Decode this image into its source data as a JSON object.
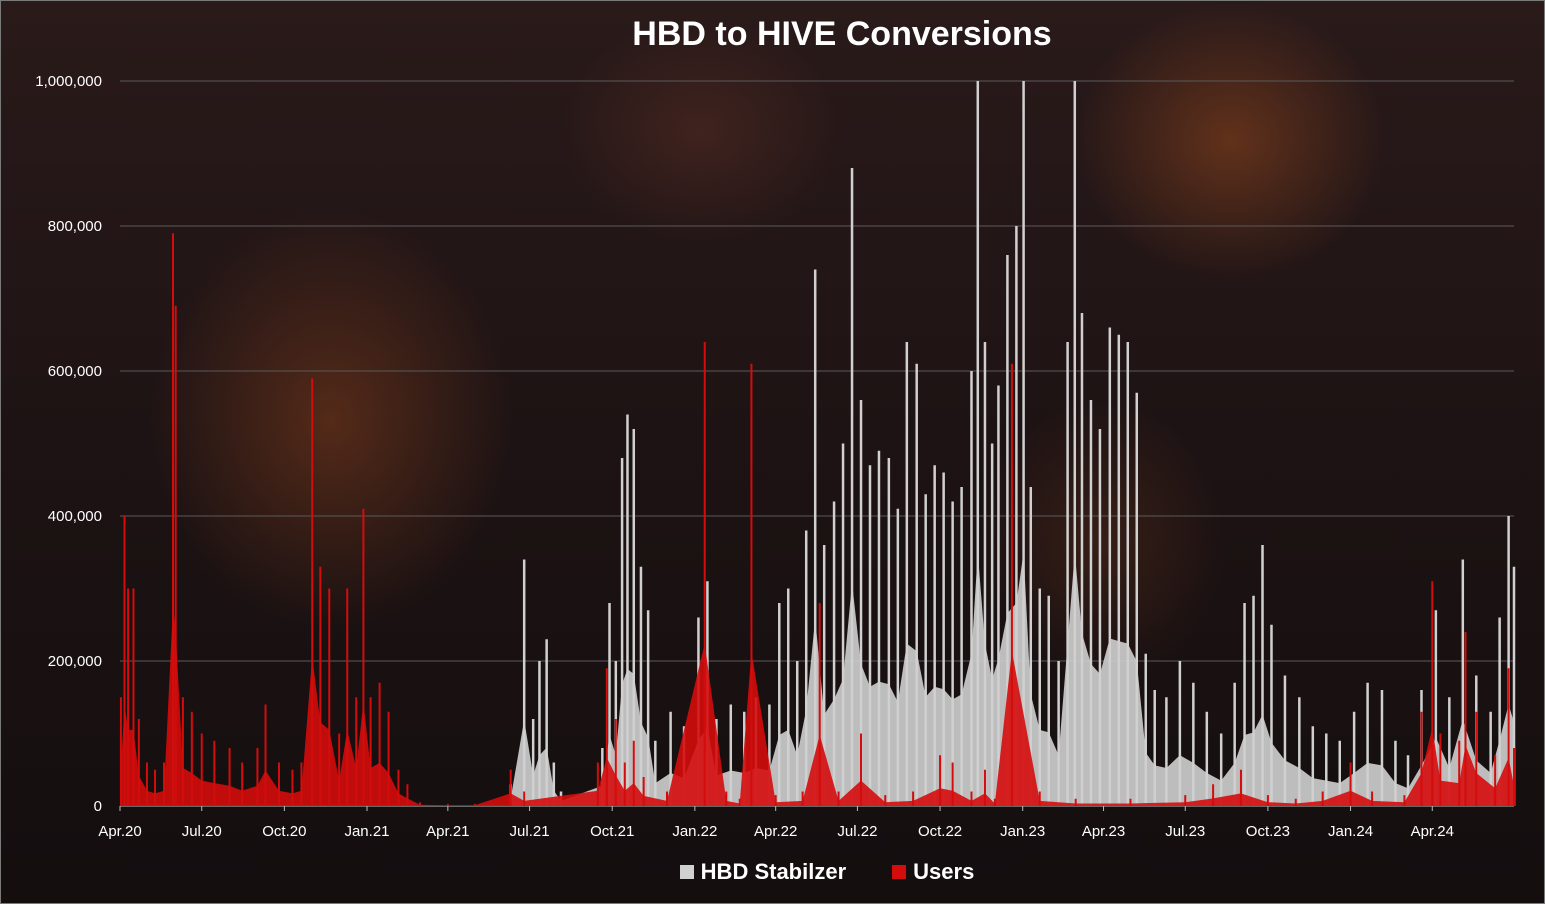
{
  "chart_data": {
    "type": "bar",
    "title": "HBD to HIVE Conversions",
    "xlabel": "",
    "ylabel": "",
    "ylim": [
      0,
      1000000
    ],
    "y_ticks": [
      "0",
      "200,000",
      "400,000",
      "600,000",
      "800,000",
      "1,000,000"
    ],
    "y_tick_values": [
      0,
      200000,
      400000,
      600000,
      800000,
      1000000
    ],
    "x_ticks": [
      "Apr.20",
      "Jul.20",
      "Oct.20",
      "Jan.21",
      "Apr.21",
      "Jul.21",
      "Oct.21",
      "Jan.22",
      "Apr.22",
      "Jul.22",
      "Oct.22",
      "Jan.23",
      "Apr.23",
      "Jul.23",
      "Oct.23",
      "Jan.24",
      "Apr.24"
    ],
    "x_unit": "month",
    "x_start": "2020-04",
    "x_end": "2024-07",
    "grid": true,
    "legend_position": "bottom",
    "series": [
      {
        "name": "HBD Stabilzer",
        "color": "#d0d0d0",
        "stacked": false,
        "points": [
          [
            "2021-06-10",
            30000
          ],
          [
            "2021-06-25",
            340000
          ],
          [
            "2021-07-05",
            120000
          ],
          [
            "2021-07-12",
            200000
          ],
          [
            "2021-07-20",
            230000
          ],
          [
            "2021-07-28",
            60000
          ],
          [
            "2021-08-05",
            20000
          ],
          [
            "2021-09-20",
            80000
          ],
          [
            "2021-09-28",
            280000
          ],
          [
            "2021-10-05",
            200000
          ],
          [
            "2021-10-12",
            480000
          ],
          [
            "2021-10-18",
            540000
          ],
          [
            "2021-10-25",
            520000
          ],
          [
            "2021-11-02",
            330000
          ],
          [
            "2021-11-10",
            270000
          ],
          [
            "2021-11-18",
            90000
          ],
          [
            "2021-12-05",
            130000
          ],
          [
            "2021-12-20",
            110000
          ],
          [
            "2022-01-05",
            260000
          ],
          [
            "2022-01-15",
            310000
          ],
          [
            "2022-01-25",
            120000
          ],
          [
            "2022-02-10",
            140000
          ],
          [
            "2022-02-25",
            130000
          ],
          [
            "2022-03-10",
            150000
          ],
          [
            "2022-03-25",
            140000
          ],
          [
            "2022-04-05",
            280000
          ],
          [
            "2022-04-15",
            300000
          ],
          [
            "2022-04-25",
            200000
          ],
          [
            "2022-05-05",
            380000
          ],
          [
            "2022-05-15",
            740000
          ],
          [
            "2022-05-25",
            360000
          ],
          [
            "2022-06-05",
            420000
          ],
          [
            "2022-06-15",
            500000
          ],
          [
            "2022-06-25",
            880000
          ],
          [
            "2022-07-05",
            560000
          ],
          [
            "2022-07-15",
            470000
          ],
          [
            "2022-07-25",
            490000
          ],
          [
            "2022-08-05",
            480000
          ],
          [
            "2022-08-15",
            410000
          ],
          [
            "2022-08-25",
            640000
          ],
          [
            "2022-09-05",
            610000
          ],
          [
            "2022-09-15",
            430000
          ],
          [
            "2022-09-25",
            470000
          ],
          [
            "2022-10-05",
            460000
          ],
          [
            "2022-10-15",
            420000
          ],
          [
            "2022-10-25",
            440000
          ],
          [
            "2022-11-05",
            600000
          ],
          [
            "2022-11-12",
            1000000
          ],
          [
            "2022-11-20",
            640000
          ],
          [
            "2022-11-28",
            500000
          ],
          [
            "2022-12-05",
            580000
          ],
          [
            "2022-12-15",
            760000
          ],
          [
            "2022-12-25",
            800000
          ],
          [
            "2023-01-02",
            1000000
          ],
          [
            "2023-01-10",
            440000
          ],
          [
            "2023-01-20",
            300000
          ],
          [
            "2023-01-30",
            290000
          ],
          [
            "2023-02-10",
            200000
          ],
          [
            "2023-02-20",
            640000
          ],
          [
            "2023-02-28",
            1000000
          ],
          [
            "2023-03-08",
            680000
          ],
          [
            "2023-03-18",
            560000
          ],
          [
            "2023-03-28",
            520000
          ],
          [
            "2023-04-08",
            660000
          ],
          [
            "2023-04-18",
            650000
          ],
          [
            "2023-04-28",
            640000
          ],
          [
            "2023-05-08",
            570000
          ],
          [
            "2023-05-18",
            210000
          ],
          [
            "2023-05-28",
            160000
          ],
          [
            "2023-06-10",
            150000
          ],
          [
            "2023-06-25",
            200000
          ],
          [
            "2023-07-10",
            170000
          ],
          [
            "2023-07-25",
            130000
          ],
          [
            "2023-08-10",
            100000
          ],
          [
            "2023-08-25",
            170000
          ],
          [
            "2023-09-05",
            280000
          ],
          [
            "2023-09-15",
            290000
          ],
          [
            "2023-09-25",
            360000
          ],
          [
            "2023-10-05",
            250000
          ],
          [
            "2023-10-20",
            180000
          ],
          [
            "2023-11-05",
            150000
          ],
          [
            "2023-11-20",
            110000
          ],
          [
            "2023-12-05",
            100000
          ],
          [
            "2023-12-20",
            90000
          ],
          [
            "2024-01-05",
            130000
          ],
          [
            "2024-01-20",
            170000
          ],
          [
            "2024-02-05",
            160000
          ],
          [
            "2024-02-20",
            90000
          ],
          [
            "2024-03-05",
            70000
          ],
          [
            "2024-03-20",
            160000
          ],
          [
            "2024-04-05",
            270000
          ],
          [
            "2024-04-20",
            150000
          ],
          [
            "2024-05-05",
            340000
          ],
          [
            "2024-05-20",
            180000
          ],
          [
            "2024-06-05",
            130000
          ],
          [
            "2024-06-15",
            260000
          ],
          [
            "2024-06-25",
            400000
          ],
          [
            "2024-07-01",
            330000
          ]
        ]
      },
      {
        "name": "Users",
        "color": "#d40c0c",
        "stacked": false,
        "points": [
          [
            "2020-04-02",
            150000
          ],
          [
            "2020-04-06",
            400000
          ],
          [
            "2020-04-10",
            300000
          ],
          [
            "2020-04-16",
            300000
          ],
          [
            "2020-04-22",
            120000
          ],
          [
            "2020-05-01",
            60000
          ],
          [
            "2020-05-10",
            50000
          ],
          [
            "2020-05-20",
            60000
          ],
          [
            "2020-05-30",
            790000
          ],
          [
            "2020-06-02",
            690000
          ],
          [
            "2020-06-10",
            150000
          ],
          [
            "2020-06-20",
            130000
          ],
          [
            "2020-07-01",
            100000
          ],
          [
            "2020-07-15",
            90000
          ],
          [
            "2020-08-01",
            80000
          ],
          [
            "2020-08-15",
            60000
          ],
          [
            "2020-09-01",
            80000
          ],
          [
            "2020-09-10",
            140000
          ],
          [
            "2020-09-25",
            60000
          ],
          [
            "2020-10-10",
            50000
          ],
          [
            "2020-10-20",
            60000
          ],
          [
            "2020-11-01",
            590000
          ],
          [
            "2020-11-10",
            330000
          ],
          [
            "2020-11-20",
            300000
          ],
          [
            "2020-12-01",
            100000
          ],
          [
            "2020-12-10",
            300000
          ],
          [
            "2020-12-20",
            150000
          ],
          [
            "2020-12-28",
            410000
          ],
          [
            "2021-01-05",
            150000
          ],
          [
            "2021-01-15",
            170000
          ],
          [
            "2021-01-25",
            130000
          ],
          [
            "2021-02-05",
            50000
          ],
          [
            "2021-02-15",
            30000
          ],
          [
            "2021-03-01",
            5000
          ],
          [
            "2021-04-01",
            3000
          ],
          [
            "2021-05-01",
            3000
          ],
          [
            "2021-06-10",
            50000
          ],
          [
            "2021-06-25",
            20000
          ],
          [
            "2021-09-15",
            60000
          ],
          [
            "2021-09-25",
            190000
          ],
          [
            "2021-10-05",
            120000
          ],
          [
            "2021-10-15",
            60000
          ],
          [
            "2021-10-25",
            90000
          ],
          [
            "2021-11-05",
            40000
          ],
          [
            "2021-12-01",
            20000
          ],
          [
            "2022-01-12",
            640000
          ],
          [
            "2022-02-05",
            20000
          ],
          [
            "2022-02-20",
            10000
          ],
          [
            "2022-03-05",
            610000
          ],
          [
            "2022-04-01",
            15000
          ],
          [
            "2022-05-01",
            20000
          ],
          [
            "2022-05-20",
            280000
          ],
          [
            "2022-06-10",
            20000
          ],
          [
            "2022-07-05",
            100000
          ],
          [
            "2022-08-01",
            15000
          ],
          [
            "2022-09-01",
            20000
          ],
          [
            "2022-10-01",
            70000
          ],
          [
            "2022-10-15",
            60000
          ],
          [
            "2022-11-05",
            20000
          ],
          [
            "2022-11-20",
            50000
          ],
          [
            "2022-12-01",
            10000
          ],
          [
            "2022-12-20",
            610000
          ],
          [
            "2023-01-20",
            20000
          ],
          [
            "2023-03-01",
            10000
          ],
          [
            "2023-05-01",
            10000
          ],
          [
            "2023-07-01",
            15000
          ],
          [
            "2023-08-01",
            30000
          ],
          [
            "2023-09-01",
            50000
          ],
          [
            "2023-10-01",
            15000
          ],
          [
            "2023-11-01",
            10000
          ],
          [
            "2023-12-01",
            20000
          ],
          [
            "2024-01-01",
            60000
          ],
          [
            "2024-01-25",
            20000
          ],
          [
            "2024-03-01",
            15000
          ],
          [
            "2024-03-20",
            130000
          ],
          [
            "2024-04-01",
            310000
          ],
          [
            "2024-04-10",
            100000
          ],
          [
            "2024-05-01",
            90000
          ],
          [
            "2024-05-08",
            240000
          ],
          [
            "2024-05-20",
            130000
          ],
          [
            "2024-06-10",
            70000
          ],
          [
            "2024-06-25",
            190000
          ],
          [
            "2024-07-01",
            80000
          ]
        ]
      }
    ]
  }
}
